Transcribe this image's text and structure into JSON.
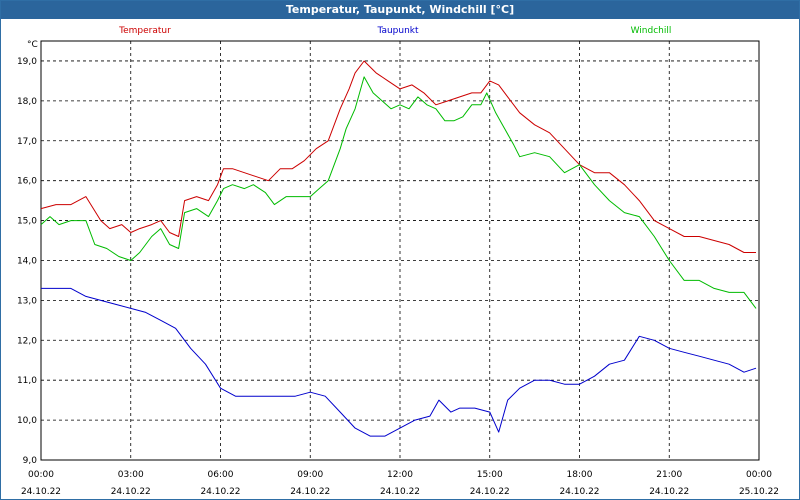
{
  "window": {
    "title": "Temperatur, Taupunkt, Windchill [°C]"
  },
  "chart_data": {
    "type": "line",
    "title": "Temperatur, Taupunkt, Windchill [°C]",
    "ylabel": "°C",
    "xlabel": "",
    "ylim": [
      9.0,
      19.5
    ],
    "xlim": [
      0,
      24
    ],
    "grid": true,
    "legend_position": "top",
    "y_ticks": [
      "9,0",
      "10,0",
      "11,0",
      "12,0",
      "13,0",
      "14,0",
      "15,0",
      "16,0",
      "17,0",
      "18,0",
      "19,0"
    ],
    "x_ticks": [
      {
        "time": "00:00",
        "date": "24.10.22"
      },
      {
        "time": "03:00",
        "date": "24.10.22"
      },
      {
        "time": "06:00",
        "date": "24.10.22"
      },
      {
        "time": "09:00",
        "date": "24.10.22"
      },
      {
        "time": "12:00",
        "date": "24.10.22"
      },
      {
        "time": "15:00",
        "date": "24.10.22"
      },
      {
        "time": "18:00",
        "date": "24.10.22"
      },
      {
        "time": "21:00",
        "date": "24.10.22"
      },
      {
        "time": "00:00",
        "date": "25.10.22"
      }
    ],
    "series": [
      {
        "name": "Temperatur",
        "color": "#cc0000",
        "x": [
          0,
          0.5,
          1,
          1.5,
          2,
          2.3,
          2.7,
          3,
          3.3,
          3.7,
          4,
          4.3,
          4.6,
          4.8,
          5.2,
          5.6,
          5.9,
          6.1,
          6.4,
          6.8,
          7.2,
          7.6,
          8,
          8.4,
          8.8,
          9.2,
          9.6,
          10,
          10.3,
          10.5,
          10.8,
          11.2,
          11.6,
          12,
          12.4,
          12.8,
          13.2,
          13.6,
          14,
          14.4,
          14.7,
          15,
          15.3,
          15.6,
          16,
          16.5,
          17,
          17.5,
          18,
          18.5,
          19,
          19.5,
          20,
          20.5,
          21,
          21.5,
          22,
          22.5,
          23,
          23.5,
          23.9
        ],
        "values": [
          15.3,
          15.4,
          15.4,
          15.6,
          15.0,
          14.8,
          14.9,
          14.7,
          14.8,
          14.9,
          15.0,
          14.7,
          14.6,
          15.5,
          15.6,
          15.5,
          15.9,
          16.3,
          16.3,
          16.2,
          16.1,
          16.0,
          16.3,
          16.3,
          16.5,
          16.8,
          17.0,
          17.8,
          18.3,
          18.7,
          19.0,
          18.7,
          18.5,
          18.3,
          18.4,
          18.2,
          17.9,
          18.0,
          18.1,
          18.2,
          18.2,
          18.5,
          18.4,
          18.1,
          17.7,
          17.4,
          17.2,
          16.8,
          16.4,
          16.2,
          16.2,
          15.9,
          15.5,
          15.0,
          14.8,
          14.6,
          14.6,
          14.5,
          14.4,
          14.2,
          14.2
        ]
      },
      {
        "name": "Taupunkt",
        "color": "#0000cc",
        "x": [
          0,
          0.5,
          1,
          1.5,
          2,
          2.5,
          3,
          3.5,
          4,
          4.5,
          5,
          5.5,
          6,
          6.5,
          7,
          7.5,
          8,
          8.5,
          9,
          9.5,
          10,
          10.5,
          11,
          11.5,
          12,
          12.5,
          13,
          13.3,
          13.7,
          14,
          14.5,
          15,
          15.3,
          15.6,
          16,
          16.5,
          17,
          17.5,
          18,
          18.5,
          19,
          19.5,
          20,
          20.5,
          21,
          21.5,
          22,
          22.5,
          23,
          23.5,
          23.9
        ],
        "values": [
          13.3,
          13.3,
          13.3,
          13.1,
          13.0,
          12.9,
          12.8,
          12.7,
          12.5,
          12.3,
          11.8,
          11.4,
          10.8,
          10.6,
          10.6,
          10.6,
          10.6,
          10.6,
          10.7,
          10.6,
          10.2,
          9.8,
          9.6,
          9.6,
          9.8,
          10.0,
          10.1,
          10.5,
          10.2,
          10.3,
          10.3,
          10.2,
          9.7,
          10.5,
          10.8,
          11.0,
          11.0,
          10.9,
          10.9,
          11.1,
          11.4,
          11.5,
          12.1,
          12.0,
          11.8,
          11.7,
          11.6,
          11.5,
          11.4,
          11.2,
          11.3
        ]
      },
      {
        "name": "Windchill",
        "color": "#00bb00",
        "x": [
          0,
          0.3,
          0.6,
          1,
          1.5,
          1.8,
          2.2,
          2.6,
          3,
          3.3,
          3.7,
          4,
          4.3,
          4.6,
          4.8,
          5.2,
          5.6,
          5.9,
          6.1,
          6.4,
          6.8,
          7.1,
          7.5,
          7.8,
          8.2,
          8.6,
          9,
          9.3,
          9.6,
          10,
          10.2,
          10.5,
          10.8,
          11.1,
          11.4,
          11.7,
          12,
          12.3,
          12.6,
          12.9,
          13.2,
          13.5,
          13.8,
          14.1,
          14.4,
          14.7,
          14.9,
          15.2,
          15.5,
          15.8,
          16,
          16.5,
          17,
          17.5,
          18,
          18.5,
          19,
          19.5,
          20,
          20.5,
          21,
          21.5,
          22,
          22.5,
          23,
          23.5,
          23.9
        ],
        "values": [
          14.9,
          15.1,
          14.9,
          15.0,
          15.0,
          14.4,
          14.3,
          14.1,
          14.0,
          14.2,
          14.6,
          14.8,
          14.4,
          14.3,
          15.2,
          15.3,
          15.1,
          15.5,
          15.8,
          15.9,
          15.8,
          15.9,
          15.7,
          15.4,
          15.6,
          15.6,
          15.6,
          15.8,
          16.0,
          16.8,
          17.3,
          17.8,
          18.6,
          18.2,
          18.0,
          17.8,
          17.9,
          17.8,
          18.1,
          17.9,
          17.8,
          17.5,
          17.5,
          17.6,
          17.9,
          17.9,
          18.2,
          17.7,
          17.3,
          16.9,
          16.6,
          16.7,
          16.6,
          16.2,
          16.4,
          15.9,
          15.5,
          15.2,
          15.1,
          14.6,
          14.0,
          13.5,
          13.5,
          13.3,
          13.2,
          13.2,
          12.8
        ]
      }
    ]
  }
}
